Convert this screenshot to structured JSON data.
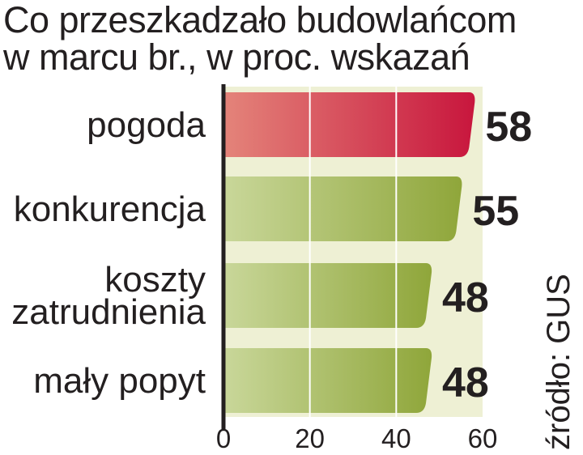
{
  "title_lines": [
    "Co przeszkadzało budowlańcom",
    "w marcu br., w proc. wskazań"
  ],
  "source": "źródło: GUS",
  "chart_data": {
    "type": "bar",
    "orientation": "horizontal",
    "categories": [
      [
        "pogoda"
      ],
      [
        "konkurencja"
      ],
      [
        "koszty",
        "zatrudnienia"
      ],
      [
        "mały popyt"
      ]
    ],
    "values": [
      58,
      55,
      48,
      48
    ],
    "xlim": [
      0,
      60
    ],
    "xticks": [
      0,
      20,
      40,
      60
    ],
    "grid": true,
    "colors": {
      "highlight": [
        "#e4847a",
        "#c8163d"
      ],
      "default": [
        "#c9d79a",
        "#8fa63a"
      ],
      "band": "#eef0d4",
      "grid": "#ffffff",
      "axis": "#231f20"
    }
  }
}
